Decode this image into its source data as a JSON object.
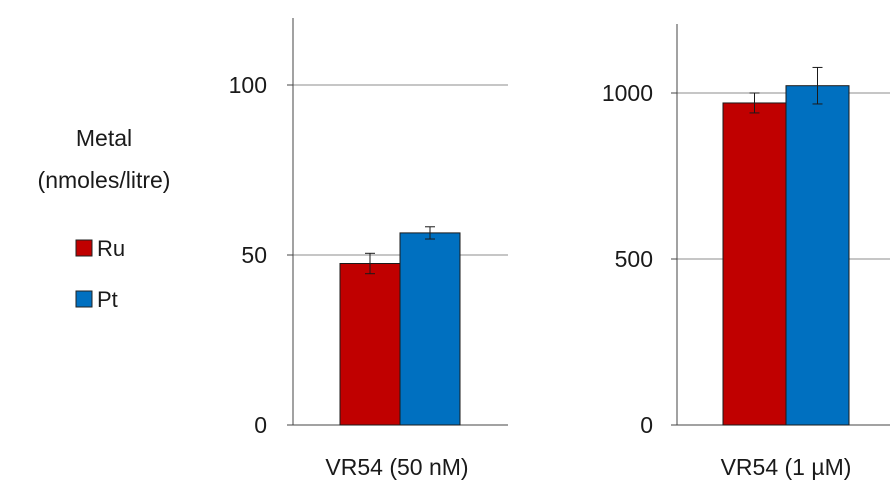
{
  "chart_data": [
    {
      "type": "bar",
      "categories": [
        "VR54 (50 nM)"
      ],
      "series": [
        {
          "name": "Ru",
          "values": [
            47.5
          ],
          "errors": [
            3.0
          ],
          "color": "#c00000"
        },
        {
          "name": "Pt",
          "values": [
            56.5
          ],
          "errors": [
            1.8
          ],
          "color": "#0070c0"
        }
      ],
      "ylim": [
        0,
        120
      ],
      "yticks": [
        "0",
        "50",
        "100"
      ],
      "ytick_values": [
        0,
        50,
        100
      ],
      "grid": true
    },
    {
      "type": "bar",
      "categories": [
        "VR54 (1 µM)"
      ],
      "series": [
        {
          "name": "Ru",
          "values": [
            970
          ],
          "errors": [
            30
          ],
          "color": "#c00000"
        },
        {
          "name": "Pt",
          "values": [
            1022
          ],
          "errors": [
            55
          ],
          "color": "#0070c0"
        }
      ],
      "ylim": [
        0,
        1200
      ],
      "yticks": [
        "0",
        "500",
        "1000"
      ],
      "ytick_values": [
        0,
        500,
        1000
      ],
      "grid": true
    }
  ],
  "legend": {
    "title_line1": "Metal",
    "title_line2": "(nmoles/litre)",
    "placement": "left",
    "items": [
      {
        "label": "Ru",
        "color": "#c00000"
      },
      {
        "label": "Pt",
        "color": "#0070c0"
      }
    ]
  }
}
